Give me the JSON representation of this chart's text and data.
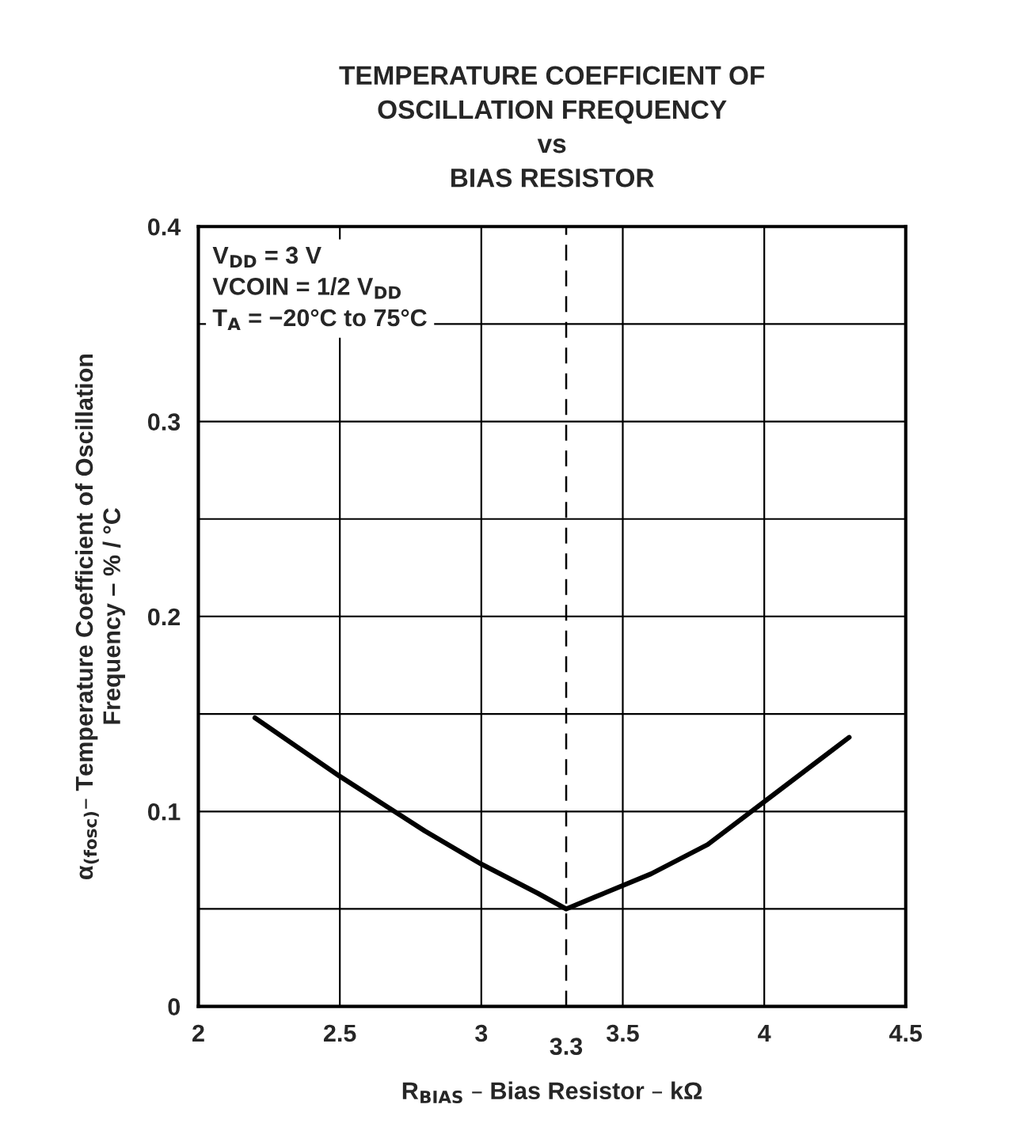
{
  "chart_data": {
    "type": "line",
    "title": "TEMPERATURE COEFFICIENT OF\nOSCILLATION FREQUENCY\nvs\nBIAS RESISTOR",
    "xlabel": "R$_{BIAS}$ – Bias Resistor – kΩ",
    "ylabel": "α$_{(fosc)}$– Temperature Coefficient of Oscillation\nFrequency – % / °C",
    "annotations": [
      "V$_{DD}$ = 3 V\nVCOIN = 1/2 V$_{DD}$\nT$_{A}$ = −20°C to 75°C"
    ],
    "series": [
      {
        "color": "#000000",
        "x": [
          2.2,
          2.5,
          2.8,
          3.0,
          3.2,
          3.3,
          3.4,
          3.6,
          3.8,
          4.0,
          4.2,
          4.3
        ],
        "values": [
          0.148,
          0.118,
          0.09,
          0.073,
          0.058,
          0.05,
          0.056,
          0.068,
          0.083,
          0.105,
          0.127,
          0.138
        ]
      }
    ],
    "xlim": [
      2,
      4.5
    ],
    "xticks": [
      2,
      2.5,
      3,
      3.5,
      4,
      4.5
    ],
    "ylim": [
      0,
      0.4
    ],
    "yticks": [
      0,
      {
        "value": 0.05,
        "label": null
      },
      0.1,
      {
        "value": 0.15,
        "label": null
      },
      0.2,
      {
        "value": 0.25,
        "label": null
      },
      0.3,
      {
        "value": 0.35,
        "label": null
      },
      0.4
    ],
    "ref_lines": [
      {
        "axis": "x",
        "value": 3.3,
        "label": "3.3",
        "line_style": "dashed"
      }
    ],
    "grid": true,
    "legend": false,
    "marker": "none",
    "line_style": "solid"
  }
}
